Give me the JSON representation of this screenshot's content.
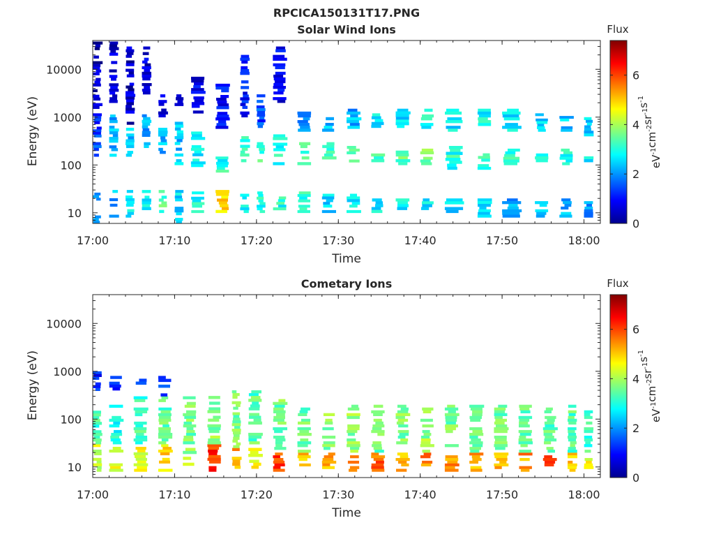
{
  "figure": {
    "title": "RPCICA150131T17.PNG"
  },
  "colormap": "jet",
  "chart_data": [
    {
      "type": "heatmap",
      "title": "Solar Wind Ions",
      "xlabel": "Time",
      "ylabel": "Energy (eV)",
      "y_scale": "log",
      "xlim": [
        "17:00",
        "18:02"
      ],
      "ylim": [
        6,
        40000
      ],
      "x_ticks": [
        "17:00",
        "17:10",
        "17:20",
        "17:30",
        "17:40",
        "17:50",
        "18:00"
      ],
      "y_ticks": [
        "10",
        "100",
        "1000",
        "10000"
      ],
      "colorbar": {
        "title": "Flux",
        "label": "eV-1cm-2sr-1s-1",
        "label_parts": [
          {
            "t": "eV",
            "sup": false
          },
          {
            "t": "-1",
            "sup": true
          },
          {
            "t": "cm",
            "sup": false
          },
          {
            "t": "-2",
            "sup": true
          },
          {
            "t": "sr",
            "sup": false
          },
          {
            "t": "-1",
            "sup": true
          },
          {
            "t": "s",
            "sup": false
          },
          {
            "t": "-1",
            "sup": true
          }
        ],
        "range": [
          0,
          7.4
        ],
        "ticks": [
          "0",
          "2",
          "4",
          "6"
        ]
      },
      "grid": false,
      "cells": [
        {
          "t": "17:00",
          "bands": [
            [
              6,
              10,
              2.0
            ],
            [
              16,
              30,
              1.9
            ],
            [
              150,
              300,
              1.6
            ],
            [
              380,
              1200,
              1.3
            ],
            [
              1500,
              38000,
              0.4
            ]
          ]
        },
        {
          "t": "17:02",
          "bands": [
            [
              8,
              30,
              2.2
            ],
            [
              150,
              1300,
              2.2
            ],
            [
              2000,
              38000,
              0.6
            ]
          ]
        },
        {
          "t": "17:04",
          "bands": [
            [
              8,
              30,
              2.6
            ],
            [
              150,
              600,
              2.4
            ],
            [
              700,
              30000,
              0.5
            ]
          ]
        },
        {
          "t": "17:06",
          "bands": [
            [
              6,
              10,
              2.5
            ],
            [
              10,
              30,
              2.8
            ],
            [
              200,
              1500,
              2.2
            ],
            [
              3000,
              30000,
              0.6
            ]
          ]
        },
        {
          "t": "17:08",
          "bands": [
            [
              10,
              30,
              3.4
            ],
            [
              150,
              600,
              2.2
            ],
            [
              1000,
              3000,
              0.8
            ]
          ]
        },
        {
          "t": "17:10",
          "bands": [
            [
              6,
              30,
              2.6
            ],
            [
              100,
              800,
              2.4
            ],
            [
              1500,
              3000,
              0.6
            ]
          ]
        },
        {
          "t": "17:12",
          "bands": [
            [
              10,
              28,
              2.8
            ],
            [
              80,
              500,
              2.6
            ],
            [
              1200,
              8000,
              0.8
            ]
          ]
        },
        {
          "t": "17:15",
          "bands": [
            [
              10,
              30,
              5.0
            ],
            [
              70,
              150,
              3.0
            ],
            [
              500,
              5000,
              1.0
            ]
          ]
        },
        {
          "t": "17:18",
          "bands": [
            [
              10,
              25,
              2.8
            ],
            [
              100,
              400,
              3.0
            ],
            [
              1000,
              20000,
              1.0
            ]
          ]
        },
        {
          "t": "17:20",
          "bands": [
            [
              10,
              28,
              2.9
            ],
            [
              100,
              300,
              3.2
            ],
            [
              600,
              3000,
              1.4
            ]
          ]
        },
        {
          "t": "17:22",
          "bands": [
            [
              10,
              25,
              3.0
            ],
            [
              100,
              500,
              3.0
            ],
            [
              2000,
              30000,
              0.8
            ]
          ]
        },
        {
          "t": "17:25",
          "bands": [
            [
              10,
              28,
              3.0
            ],
            [
              100,
              300,
              3.2
            ],
            [
              500,
              1500,
              2.0
            ]
          ]
        },
        {
          "t": "17:28",
          "bands": [
            [
              10,
              25,
              2.6
            ],
            [
              100,
              300,
              3.2
            ],
            [
              500,
              1000,
              2.4
            ]
          ]
        },
        {
          "t": "17:31",
          "bands": [
            [
              10,
              25,
              2.8
            ],
            [
              100,
              250,
              3.4
            ],
            [
              500,
              1500,
              2.2
            ]
          ]
        },
        {
          "t": "17:34",
          "bands": [
            [
              10,
              20,
              2.8
            ],
            [
              100,
              200,
              3.2
            ],
            [
              600,
              1200,
              2.6
            ]
          ]
        },
        {
          "t": "17:37",
          "bands": [
            [
              10,
              20,
              2.7
            ],
            [
              100,
              200,
              3.4
            ],
            [
              600,
              1500,
              2.6
            ]
          ]
        },
        {
          "t": "17:40",
          "bands": [
            [
              10,
              20,
              2.6
            ],
            [
              100,
              250,
              3.6
            ],
            [
              500,
              1500,
              2.8
            ]
          ]
        },
        {
          "t": "17:43",
          "bands": [
            [
              10,
              20,
              2.6
            ],
            [
              80,
              250,
              3.0
            ],
            [
              500,
              1500,
              2.6
            ]
          ]
        },
        {
          "t": "17:47",
          "bands": [
            [
              8,
              20,
              2.4
            ],
            [
              80,
              200,
              3.0
            ],
            [
              500,
              1500,
              2.8
            ]
          ]
        },
        {
          "t": "17:50",
          "bands": [
            [
              8,
              20,
              2.2
            ],
            [
              100,
              250,
              3.2
            ],
            [
              500,
              1500,
              2.6
            ]
          ]
        },
        {
          "t": "17:54",
          "bands": [
            [
              8,
              20,
              2.4
            ],
            [
              100,
              200,
              3.0
            ],
            [
              500,
              1200,
              2.6
            ]
          ]
        },
        {
          "t": "17:57",
          "bands": [
            [
              8,
              20,
              2.2
            ],
            [
              100,
              250,
              3.0
            ],
            [
              500,
              1200,
              2.4
            ]
          ]
        },
        {
          "t": "18:00",
          "bands": [
            [
              8,
              20,
              2.0
            ],
            [
              100,
              200,
              2.8
            ],
            [
              400,
              1000,
              2.4
            ]
          ]
        }
      ]
    },
    {
      "type": "heatmap",
      "title": "Cometary Ions",
      "xlabel": "Time",
      "ylabel": "Energy (eV)",
      "y_scale": "log",
      "xlim": [
        "17:00",
        "18:02"
      ],
      "ylim": [
        6,
        40000
      ],
      "x_ticks": [
        "17:00",
        "17:10",
        "17:20",
        "17:30",
        "17:40",
        "17:50",
        "18:00"
      ],
      "y_ticks": [
        "10",
        "100",
        "1000",
        "10000"
      ],
      "colorbar": {
        "title": "Flux",
        "label": "eV-1cm-2sr-1s-1",
        "label_parts": [
          {
            "t": "eV",
            "sup": false
          },
          {
            "t": "-1",
            "sup": true
          },
          {
            "t": "cm",
            "sup": false
          },
          {
            "t": "-2",
            "sup": true
          },
          {
            "t": "sr",
            "sup": false
          },
          {
            "t": "-1",
            "sup": true
          },
          {
            "t": "s",
            "sup": false
          },
          {
            "t": "-1",
            "sup": true
          }
        ],
        "range": [
          0,
          7.4
        ],
        "ticks": [
          "0",
          "2",
          "4",
          "6"
        ]
      },
      "grid": false,
      "cells": [
        {
          "t": "17:00",
          "bands": [
            [
              8,
              30,
              4.2
            ],
            [
              30,
              150,
              3.2
            ],
            [
              300,
              1000,
              1.2
            ]
          ]
        },
        {
          "t": "17:02",
          "bands": [
            [
              8,
              30,
              4.4
            ],
            [
              30,
              200,
              3.0
            ],
            [
              400,
              800,
              1.4
            ]
          ]
        },
        {
          "t": "17:05",
          "bands": [
            [
              8,
              30,
              4.6
            ],
            [
              30,
              300,
              3.2
            ],
            [
              400,
              700,
              1.6
            ]
          ]
        },
        {
          "t": "17:08",
          "bands": [
            [
              8,
              30,
              4.8
            ],
            [
              30,
              300,
              3.4
            ],
            [
              300,
              800,
              1.6
            ]
          ]
        },
        {
          "t": "17:11",
          "bands": [
            [
              8,
              25,
              4.0
            ],
            [
              30,
              300,
              3.6
            ]
          ]
        },
        {
          "t": "17:14",
          "bands": [
            [
              8,
              30,
              6.2
            ],
            [
              30,
              400,
              3.8
            ]
          ]
        },
        {
          "t": "17:17",
          "bands": [
            [
              8,
              25,
              5.4
            ],
            [
              25,
              400,
              3.6
            ]
          ]
        },
        {
          "t": "17:19",
          "bands": [
            [
              8,
              25,
              4.8
            ],
            [
              30,
              400,
              3.4
            ]
          ]
        },
        {
          "t": "17:22",
          "bands": [
            [
              8,
              20,
              6.0
            ],
            [
              20,
              300,
              3.6
            ]
          ]
        },
        {
          "t": "17:25",
          "bands": [
            [
              8,
              20,
              5.0
            ],
            [
              20,
              200,
              3.6
            ]
          ]
        },
        {
          "t": "17:28",
          "bands": [
            [
              8,
              20,
              5.2
            ],
            [
              20,
              200,
              3.8
            ]
          ]
        },
        {
          "t": "17:31",
          "bands": [
            [
              8,
              20,
              5.6
            ],
            [
              20,
              200,
              3.8
            ]
          ]
        },
        {
          "t": "17:34",
          "bands": [
            [
              8,
              20,
              5.8
            ],
            [
              20,
              200,
              3.6
            ]
          ]
        },
        {
          "t": "17:37",
          "bands": [
            [
              8,
              20,
              5.0
            ],
            [
              20,
              200,
              3.6
            ]
          ]
        },
        {
          "t": "17:40",
          "bands": [
            [
              8,
              20,
              5.6
            ],
            [
              20,
              200,
              3.8
            ]
          ]
        },
        {
          "t": "17:43",
          "bands": [
            [
              8,
              20,
              5.4
            ],
            [
              20,
              200,
              3.6
            ]
          ]
        },
        {
          "t": "17:46",
          "bands": [
            [
              8,
              20,
              5.2
            ],
            [
              20,
              200,
              3.6
            ]
          ]
        },
        {
          "t": "17:49",
          "bands": [
            [
              8,
              20,
              5.0
            ],
            [
              20,
              200,
              3.6
            ]
          ]
        },
        {
          "t": "17:52",
          "bands": [
            [
              8,
              20,
              5.4
            ],
            [
              20,
              200,
              3.4
            ]
          ]
        },
        {
          "t": "17:55",
          "bands": [
            [
              8,
              20,
              5.8
            ],
            [
              20,
              200,
              3.4
            ]
          ]
        },
        {
          "t": "17:58",
          "bands": [
            [
              8,
              20,
              5.2
            ],
            [
              20,
              200,
              3.4
            ]
          ]
        },
        {
          "t": "18:00",
          "bands": [
            [
              8,
              20,
              4.6
            ],
            [
              20,
              200,
              3.2
            ]
          ]
        }
      ]
    }
  ]
}
